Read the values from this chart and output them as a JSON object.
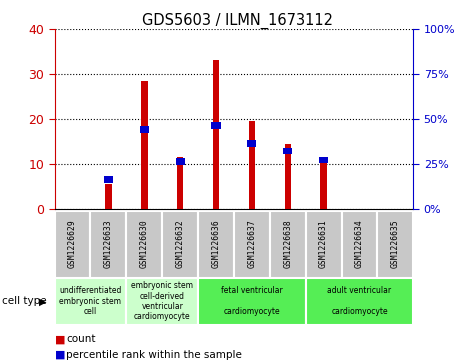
{
  "title": "GDS5603 / ILMN_1673112",
  "samples": [
    "GSM1226629",
    "GSM1226633",
    "GSM1226630",
    "GSM1226632",
    "GSM1226636",
    "GSM1226637",
    "GSM1226638",
    "GSM1226631",
    "GSM1226634",
    "GSM1226635"
  ],
  "counts": [
    0,
    5.5,
    28.5,
    11.5,
    33,
    19.5,
    14.5,
    11.5,
    0,
    0
  ],
  "percentiles": [
    0,
    18,
    46,
    28,
    48,
    38,
    34,
    29,
    0,
    0
  ],
  "cell_types": [
    {
      "label": "undifferentiated\nembryonic stem\ncell",
      "start": 0,
      "end": 2,
      "color": "#ccffcc"
    },
    {
      "label": "embryonic stem\ncell-derived\nventricular\ncardiomyocyte",
      "start": 2,
      "end": 4,
      "color": "#ccffcc"
    },
    {
      "label": "fetal ventricular\n\ncardiomyocyte",
      "start": 4,
      "end": 7,
      "color": "#55ee55"
    },
    {
      "label": "adult ventricular\n\ncardiomyocyte",
      "start": 7,
      "end": 10,
      "color": "#55ee55"
    }
  ],
  "ylim_left": [
    0,
    40
  ],
  "ylim_right": [
    0,
    100
  ],
  "yticks_left": [
    0,
    10,
    20,
    30,
    40
  ],
  "yticks_right": [
    0,
    25,
    50,
    75,
    100
  ],
  "bar_color_red": "#cc0000",
  "bar_color_blue": "#0000cc",
  "bar_width": 0.18,
  "bg_color": "#ffffff",
  "tick_label_area_bg": "#c8c8c8",
  "grid_color": "#000000",
  "left_axis_color": "#cc0000",
  "right_axis_color": "#0000cc",
  "legend_count_label": "count",
  "legend_percentile_label": "percentile rank within the sample",
  "cell_type_label": "cell type"
}
